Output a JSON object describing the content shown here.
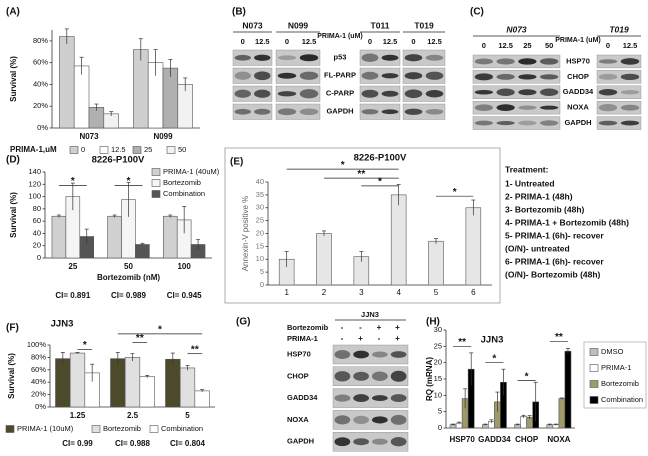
{
  "chart_data": [
    {
      "panel": "(A)",
      "type": "bar",
      "categories": [
        "N073",
        "N099"
      ],
      "legend_title": "PRIMA-1,uM",
      "series": [
        {
          "name": "0",
          "color": "#cfcfcf",
          "values": [
            84,
            72
          ],
          "errors": [
            7,
            10
          ]
        },
        {
          "name": "12.5",
          "color": "#ffffff",
          "values": [
            57,
            60
          ],
          "errors": [
            8,
            12
          ]
        },
        {
          "name": "25",
          "color": "#b0b0b0",
          "values": [
            19,
            55
          ],
          "errors": [
            3,
            8
          ]
        },
        {
          "name": "50",
          "color": "#f2f2f2",
          "values": [
            13,
            40
          ],
          "errors": [
            2,
            6
          ]
        }
      ],
      "ylabel": "Survival (%)",
      "ylim": [
        0,
        90
      ],
      "yticks": [
        {
          "value": 0,
          "label": "0%"
        },
        {
          "value": 20,
          "label": "20%"
        },
        {
          "value": 40,
          "label": "40%"
        },
        {
          "value": 60,
          "label": "60%"
        },
        {
          "value": 80,
          "label": "80%"
        }
      ]
    },
    {
      "panel": "(D)",
      "type": "bar",
      "title": "8226-P100V",
      "categories": [
        "25",
        "50",
        "100"
      ],
      "xlabel": "Bortezomib (nM)",
      "series": [
        {
          "name": "PRIMA-1 (40uM)",
          "color": "#d0d0d0",
          "values": [
            68,
            68,
            68
          ],
          "errors": [
            2,
            2,
            2
          ]
        },
        {
          "name": "Bortezomib",
          "color": "#f5f5f5",
          "values": [
            100,
            95,
            62
          ],
          "errors": [
            22,
            28,
            22
          ]
        },
        {
          "name": "Combination",
          "color": "#555555",
          "values": [
            35,
            22,
            22
          ],
          "errors": [
            12,
            2,
            8
          ]
        }
      ],
      "ylabel": "Survival (%)",
      "ylim": [
        0,
        140
      ],
      "yticks": [
        0,
        20,
        40,
        60,
        80,
        100,
        120,
        140
      ],
      "ci_labels": [
        "CI= 0.891",
        "CI= 0.989",
        "CI= 0.945"
      ],
      "significance": [
        "*",
        "*"
      ]
    },
    {
      "panel": "(E)",
      "type": "bar",
      "title": "8226-P100V",
      "categories": [
        "1",
        "2",
        "3",
        "4",
        "5",
        "6"
      ],
      "values": [
        10,
        20,
        11,
        35,
        17,
        30
      ],
      "errors": [
        3,
        1,
        2,
        4,
        1,
        3
      ],
      "color": "#e6e6e6",
      "ylabel": "Annexin-V positive %",
      "ylim": [
        0,
        40
      ],
      "yticks": [
        0,
        5,
        10,
        15,
        20,
        25,
        30,
        35,
        40
      ],
      "significance": [
        "*",
        "**",
        "*",
        "*"
      ],
      "treatment_title": "Treatment:",
      "treatment_items": [
        "1- Untreated",
        "2- PRIMA-1 (48h)",
        "3- Bortezomib (48h)",
        "4- PRIMA-1 + Bortezomib (48h)",
        "5- PRIMA-1 (6h)- recover",
        "(O/N)- untreated",
        "6- PRIMA-1 (6h)- recover",
        "(O/N)- Bortezomib (48h)"
      ]
    },
    {
      "panel": "(F)",
      "type": "bar",
      "title": "JJN3",
      "categories": [
        "1.25",
        "2.5",
        "5"
      ],
      "series": [
        {
          "name": "PRIMA-1 (10uM)",
          "color": "#4d4a2c",
          "values": [
            78,
            78,
            77
          ],
          "errors": [
            10,
            10,
            10
          ]
        },
        {
          "name": "Bortezomib",
          "color": "#e0e0e0",
          "values": [
            87,
            80,
            63
          ],
          "errors": [
            1,
            6,
            4
          ]
        },
        {
          "name": "Combination",
          "color": "#ffffff",
          "values": [
            55,
            49,
            26
          ],
          "errors": [
            14,
            2,
            2
          ]
        }
      ],
      "ylabel": "Survival (%)",
      "ylim": [
        0,
        100
      ],
      "yticks": [
        {
          "value": 0,
          "label": "0%"
        },
        {
          "value": 20,
          "label": "20%"
        },
        {
          "value": 40,
          "label": "40%"
        },
        {
          "value": 60,
          "label": "60%"
        },
        {
          "value": 80,
          "label": "80%"
        },
        {
          "value": 100,
          "label": "100%"
        }
      ],
      "ci_labels": [
        "CI= 0.99",
        "CI= 0.988",
        "CI= 0.804"
      ],
      "significance": [
        "*",
        "*",
        "**",
        "**"
      ]
    },
    {
      "panel": "(H)",
      "type": "bar",
      "title": "JJN3",
      "categories": [
        "HSP70",
        "GADD34",
        "CHOP",
        "NOXA"
      ],
      "series": [
        {
          "name": "DMSO",
          "color": "#bfbfbf",
          "values": [
            1,
            1,
            1,
            1
          ],
          "errors": [
            0.2,
            0.2,
            0.2,
            0.2
          ]
        },
        {
          "name": "PRIMA-1",
          "color": "#ffffff",
          "values": [
            1.5,
            2,
            3.5,
            1
          ],
          "errors": [
            0.3,
            0.5,
            0.4,
            0.2
          ]
        },
        {
          "name": "Bortezomib",
          "color": "#a09a6a",
          "values": [
            9,
            8,
            3.3,
            9
          ],
          "errors": [
            3,
            3,
            0.5,
            0.2
          ]
        },
        {
          "name": "Combination",
          "color": "#000000",
          "values": [
            18,
            14,
            8,
            23.5
          ],
          "errors": [
            5,
            4,
            6,
            0.8
          ]
        }
      ],
      "ylabel": "RQ (mRNA)",
      "ylim": [
        0,
        30
      ],
      "yticks": [
        0,
        5,
        10,
        15,
        20,
        25,
        30
      ],
      "significance": [
        "**",
        "*",
        "*",
        "**"
      ]
    }
  ],
  "blots": [
    {
      "panel": "(B)",
      "treatment": "PRIMA-1 (uM)",
      "groups": [
        {
          "name": "N073",
          "lanes": [
            "0",
            "12.5"
          ]
        },
        {
          "name": "N099",
          "lanes": [
            "0",
            "12.5"
          ]
        },
        {
          "name": "T011",
          "lanes": [
            "0",
            "12.5"
          ]
        },
        {
          "name": "T019",
          "lanes": [
            "0",
            "12.5"
          ]
        }
      ],
      "rows": [
        "p53",
        "FL-PARP",
        "C-PARP",
        "GAPDH"
      ]
    },
    {
      "panel": "(C)",
      "treatment": "PRIMA-1 (uM)",
      "groups": [
        {
          "name": "N073",
          "lanes": [
            "0",
            "12.5",
            "25",
            "50"
          ]
        },
        {
          "name": "T019",
          "lanes": [
            "0",
            "12.5"
          ]
        }
      ],
      "rows": [
        "HSP70",
        "CHOP",
        "GADD34",
        "NOXA",
        "GAPDH"
      ]
    },
    {
      "panel": "(G)",
      "title": "JJN3",
      "conditions": [
        {
          "name": "Bortezomib",
          "lanes": [
            "-",
            "-",
            "+",
            "+"
          ]
        },
        {
          "name": "PRIMA-1",
          "lanes": [
            "-",
            "+",
            "-",
            "+"
          ]
        }
      ],
      "rows": [
        "HSP70",
        "CHOP",
        "GADD34",
        "NOXA",
        "GAPDH"
      ]
    }
  ]
}
